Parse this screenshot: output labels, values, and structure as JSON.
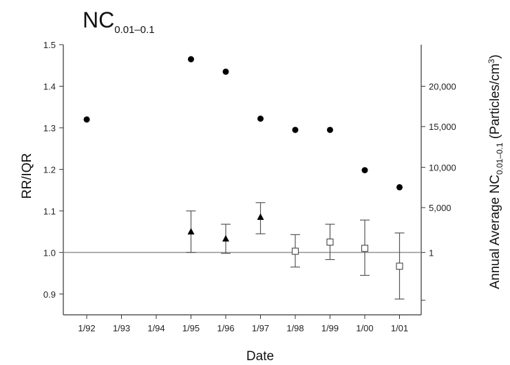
{
  "chart_data": {
    "type": "scatter",
    "title": {
      "main": "NC",
      "sub": "0.01–0.1"
    },
    "xlabel": "Date",
    "ylabel": "RR/IQR",
    "y2label": {
      "prefix": "Annual Average NC",
      "sub": "0.01–0.1",
      "unit_open": " (Particles/cm",
      "unit_sup": "3",
      "unit_close": ")"
    },
    "categories": [
      "1/92",
      "1/93",
      "1/94",
      "1/95",
      "1/96",
      "1/97",
      "1/98",
      "1/99",
      "1/00",
      "1/01"
    ],
    "ylim": [
      0.85,
      1.5
    ],
    "yticks": [
      "0.9",
      "1.0",
      "1.1",
      "1.2",
      "1.3",
      "1.4",
      "1.5"
    ],
    "y2ticks": [
      {
        "label": "1",
        "y": 1.0
      },
      {
        "label": "5,000",
        "y": 1.108
      },
      {
        "label": "10,000",
        "y": 1.205
      },
      {
        "label": "15,000",
        "y": 1.303
      },
      {
        "label": "20,000",
        "y": 1.4
      },
      {
        "label": "",
        "y": 0.885
      }
    ],
    "reference_line": 1.0,
    "grid": false,
    "series": [
      {
        "marker": "circle",
        "points": [
          {
            "x": "1/92",
            "y": 1.32
          },
          {
            "x": "1/95",
            "y": 1.465
          },
          {
            "x": "1/96",
            "y": 1.435
          },
          {
            "x": "1/97",
            "y": 1.322
          },
          {
            "x": "1/98",
            "y": 1.295
          },
          {
            "x": "1/99",
            "y": 1.295
          },
          {
            "x": "1/00",
            "y": 1.198
          },
          {
            "x": "1/01",
            "y": 1.157
          }
        ]
      },
      {
        "marker": "triangle",
        "points": [
          {
            "x": "1/95",
            "y": 1.05,
            "lo": 1.0,
            "hi": 1.1
          },
          {
            "x": "1/96",
            "y": 1.033,
            "lo": 0.998,
            "hi": 1.068
          },
          {
            "x": "1/97",
            "y": 1.085,
            "lo": 1.045,
            "hi": 1.12
          }
        ]
      },
      {
        "marker": "square",
        "points": [
          {
            "x": "1/98",
            "y": 1.003,
            "lo": 0.965,
            "hi": 1.043
          },
          {
            "x": "1/99",
            "y": 1.025,
            "lo": 0.983,
            "hi": 1.068
          },
          {
            "x": "1/00",
            "y": 1.01,
            "lo": 0.945,
            "hi": 1.078
          },
          {
            "x": "1/01",
            "y": 0.967,
            "lo": 0.888,
            "hi": 1.047
          }
        ]
      }
    ]
  }
}
